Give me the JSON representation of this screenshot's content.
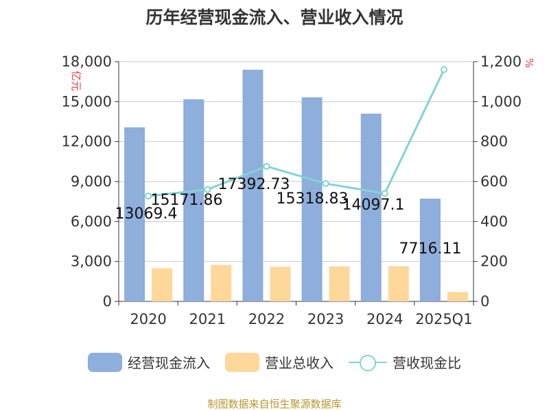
{
  "title": "历年经营现金流入、营业收入情况",
  "source": "制图数据来自恒生聚源数据库",
  "colors": {
    "bar1": "#8eaedb",
    "bar2": "#fdd89a",
    "line": "#82d3d6",
    "axis": "#333333",
    "grid": "#c8c8c8",
    "unit": "#e8383d",
    "source": "#b8952f"
  },
  "chart_data": {
    "type": "bar",
    "title": "历年经营现金流入、营业收入情况",
    "categories": [
      "2020",
      "2021",
      "2022",
      "2023",
      "2024",
      "2025Q1"
    ],
    "y_left": {
      "unit": "亿元",
      "ylim": [
        0,
        18000
      ],
      "ticks": [
        "0",
        "3,000",
        "6,000",
        "9,000",
        "12,000",
        "15,000",
        "18,000"
      ]
    },
    "y_right": {
      "unit": "%",
      "ylim": [
        0,
        1200
      ],
      "ticks": [
        "0",
        "200",
        "400",
        "600",
        "800",
        "1,000",
        "1,200"
      ]
    },
    "grid": true,
    "legend_position": "bottom",
    "series": [
      {
        "name": "经营现金流入",
        "kind": "bar",
        "axis": "left",
        "values": [
          13069.4,
          15171.86,
          17392.73,
          15318.83,
          14097.1,
          7716.11
        ],
        "labels": [
          "13069.4",
          "15171.86",
          "17392.73",
          "15318.83",
          "14097.1",
          "7716.11"
        ]
      },
      {
        "name": "营业总收入",
        "kind": "bar",
        "axis": "left",
        "values": [
          2490,
          2740,
          2600,
          2620,
          2640,
          700
        ]
      },
      {
        "name": "营收现金比",
        "kind": "line",
        "axis": "right",
        "values": [
          527,
          560,
          676,
          590,
          540,
          1160
        ]
      }
    ]
  }
}
